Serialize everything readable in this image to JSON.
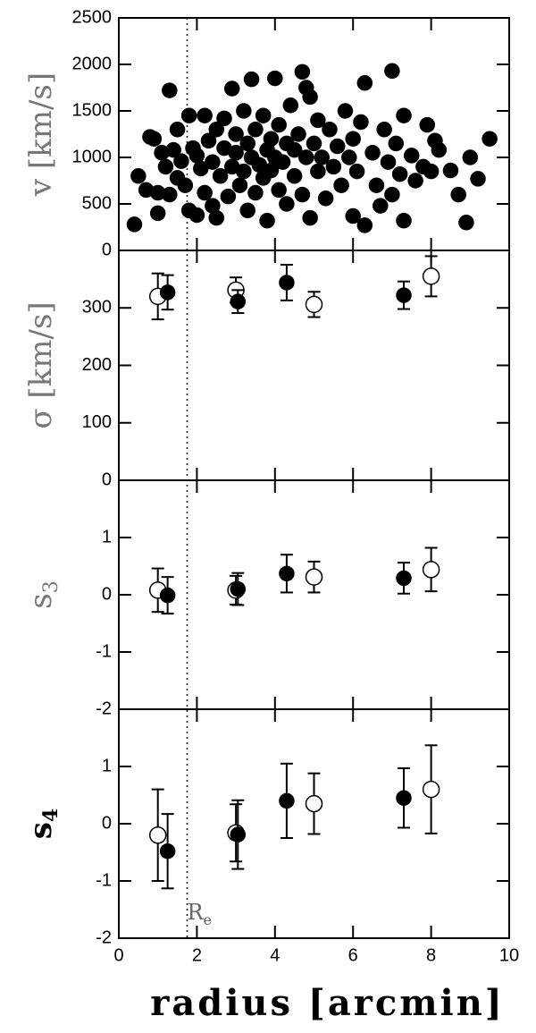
{
  "chart_data": [
    {
      "type": "scatter",
      "ylabel": "v [km/s]",
      "xlim": [
        0,
        10
      ],
      "ylim": [
        0,
        2500
      ],
      "yticks": [
        0,
        500,
        1000,
        1500,
        2000,
        2500
      ],
      "series": [
        {
          "color": "#000000",
          "marker": "filled",
          "x": [
            0.4,
            0.5,
            0.7,
            0.8,
            0.9,
            1.0,
            1.0,
            1.1,
            1.2,
            1.3,
            1.3,
            1.4,
            1.5,
            1.5,
            1.6,
            1.7,
            1.8,
            1.8,
            1.9,
            2.0,
            2.0,
            2.1,
            2.2,
            2.2,
            2.3,
            2.4,
            2.4,
            2.5,
            2.5,
            2.6,
            2.7,
            2.7,
            2.8,
            2.9,
            2.9,
            3.0,
            3.0,
            3.1,
            3.2,
            3.2,
            3.3,
            3.3,
            3.4,
            3.4,
            3.5,
            3.5,
            3.6,
            3.7,
            3.7,
            3.8,
            3.8,
            3.9,
            3.9,
            4.0,
            4.0,
            4.1,
            4.1,
            4.2,
            4.3,
            4.3,
            4.4,
            4.5,
            4.5,
            4.6,
            4.7,
            4.7,
            4.8,
            4.8,
            4.9,
            4.9,
            5.0,
            5.1,
            5.1,
            5.2,
            5.3,
            5.4,
            5.5,
            5.6,
            5.7,
            5.8,
            5.9,
            6.0,
            6.0,
            6.1,
            6.2,
            6.3,
            6.3,
            6.5,
            6.6,
            6.7,
            6.8,
            6.9,
            7.0,
            7.0,
            7.1,
            7.2,
            7.3,
            7.3,
            7.5,
            7.6,
            7.8,
            7.9,
            8.0,
            8.1,
            8.2,
            8.5,
            8.7,
            8.9,
            9.0,
            9.2,
            9.5
          ],
          "values": [
            280,
            800,
            650,
            1220,
            1200,
            400,
            620,
            1050,
            900,
            1720,
            600,
            1080,
            1300,
            780,
            960,
            700,
            430,
            1450,
            1100,
            380,
            1020,
            880,
            1450,
            620,
            1180,
            950,
            480,
            350,
            1300,
            800,
            1100,
            1420,
            580,
            1740,
            900,
            1250,
            1050,
            700,
            1500,
            850,
            430,
            1150,
            1000,
            1840,
            620,
            1300,
            920,
            780,
            1450,
            320,
            1080,
            1200,
            860,
            1850,
            1000,
            650,
            1350,
            950,
            1150,
            500,
            1560,
            800,
            1080,
            1250,
            600,
            1920,
            1000,
            1750,
            350,
            1650,
            1150,
            850,
            1400,
            1000,
            560,
            1300,
            900,
            1120,
            700,
            1500,
            1000,
            370,
            1200,
            850,
            1380,
            270,
            1800,
            1050,
            700,
            480,
            1300,
            950,
            1930,
            600,
            1150,
            820,
            1450,
            320,
            1020,
            750,
            900,
            1350,
            850,
            1180,
            1080,
            860,
            600,
            300,
            1000,
            770,
            1200
          ]
        }
      ]
    },
    {
      "type": "scatter",
      "ylabel": "σ [km/s]",
      "xlim": [
        0,
        10
      ],
      "ylim": [
        0,
        400
      ],
      "yticks": [
        0,
        100,
        200,
        300
      ],
      "series": [
        {
          "color": "#000000",
          "marker": "open",
          "x": [
            1.0,
            3.0,
            5.0,
            8.0
          ],
          "values": [
            320,
            331,
            306,
            355
          ],
          "errors": [
            40,
            22,
            22,
            35
          ]
        },
        {
          "color": "#000000",
          "marker": "filled",
          "x": [
            1.25,
            3.05,
            4.3,
            7.3
          ],
          "values": [
            327,
            311,
            344,
            322
          ],
          "errors": [
            30,
            20,
            31,
            24
          ]
        }
      ]
    },
    {
      "type": "scatter",
      "ylabel": "s",
      "ylabel_sub": "3",
      "xlim": [
        0,
        10
      ],
      "ylim": [
        -2,
        2
      ],
      "yticks": [
        -2,
        -1,
        0,
        1
      ],
      "series": [
        {
          "color": "#000000",
          "marker": "open",
          "x": [
            1.0,
            3.0,
            5.0,
            8.0
          ],
          "values": [
            0.08,
            0.08,
            0.31,
            0.44
          ],
          "errors": [
            0.38,
            0.25,
            0.27,
            0.38
          ]
        },
        {
          "color": "#000000",
          "marker": "filled",
          "x": [
            1.25,
            3.05,
            4.3,
            7.3
          ],
          "values": [
            -0.01,
            0.1,
            0.37,
            0.29
          ],
          "errors": [
            0.32,
            0.28,
            0.33,
            0.27
          ]
        }
      ]
    },
    {
      "type": "scatter",
      "ylabel": "s",
      "ylabel_sub": "4",
      "xlabel": "radius [arcmin]",
      "xlim": [
        0,
        10
      ],
      "xticks": [
        0,
        2,
        4,
        6,
        8,
        10
      ],
      "ylim": [
        -2,
        2
      ],
      "yticks": [
        -2,
        -1,
        0,
        1
      ],
      "vline": {
        "x": 1.75,
        "label": "R",
        "sub": "e"
      },
      "series": [
        {
          "color": "#000000",
          "marker": "open",
          "x": [
            1.0,
            3.0,
            5.0,
            8.0
          ],
          "values": [
            -0.2,
            -0.16,
            0.35,
            0.6
          ],
          "errors": [
            0.8,
            0.5,
            0.53,
            0.77
          ]
        },
        {
          "color": "#000000",
          "marker": "filled",
          "x": [
            1.25,
            3.05,
            4.3,
            7.3
          ],
          "values": [
            -0.48,
            -0.19,
            0.4,
            0.45
          ],
          "errors": [
            0.65,
            0.6,
            0.65,
            0.52
          ]
        }
      ]
    }
  ]
}
